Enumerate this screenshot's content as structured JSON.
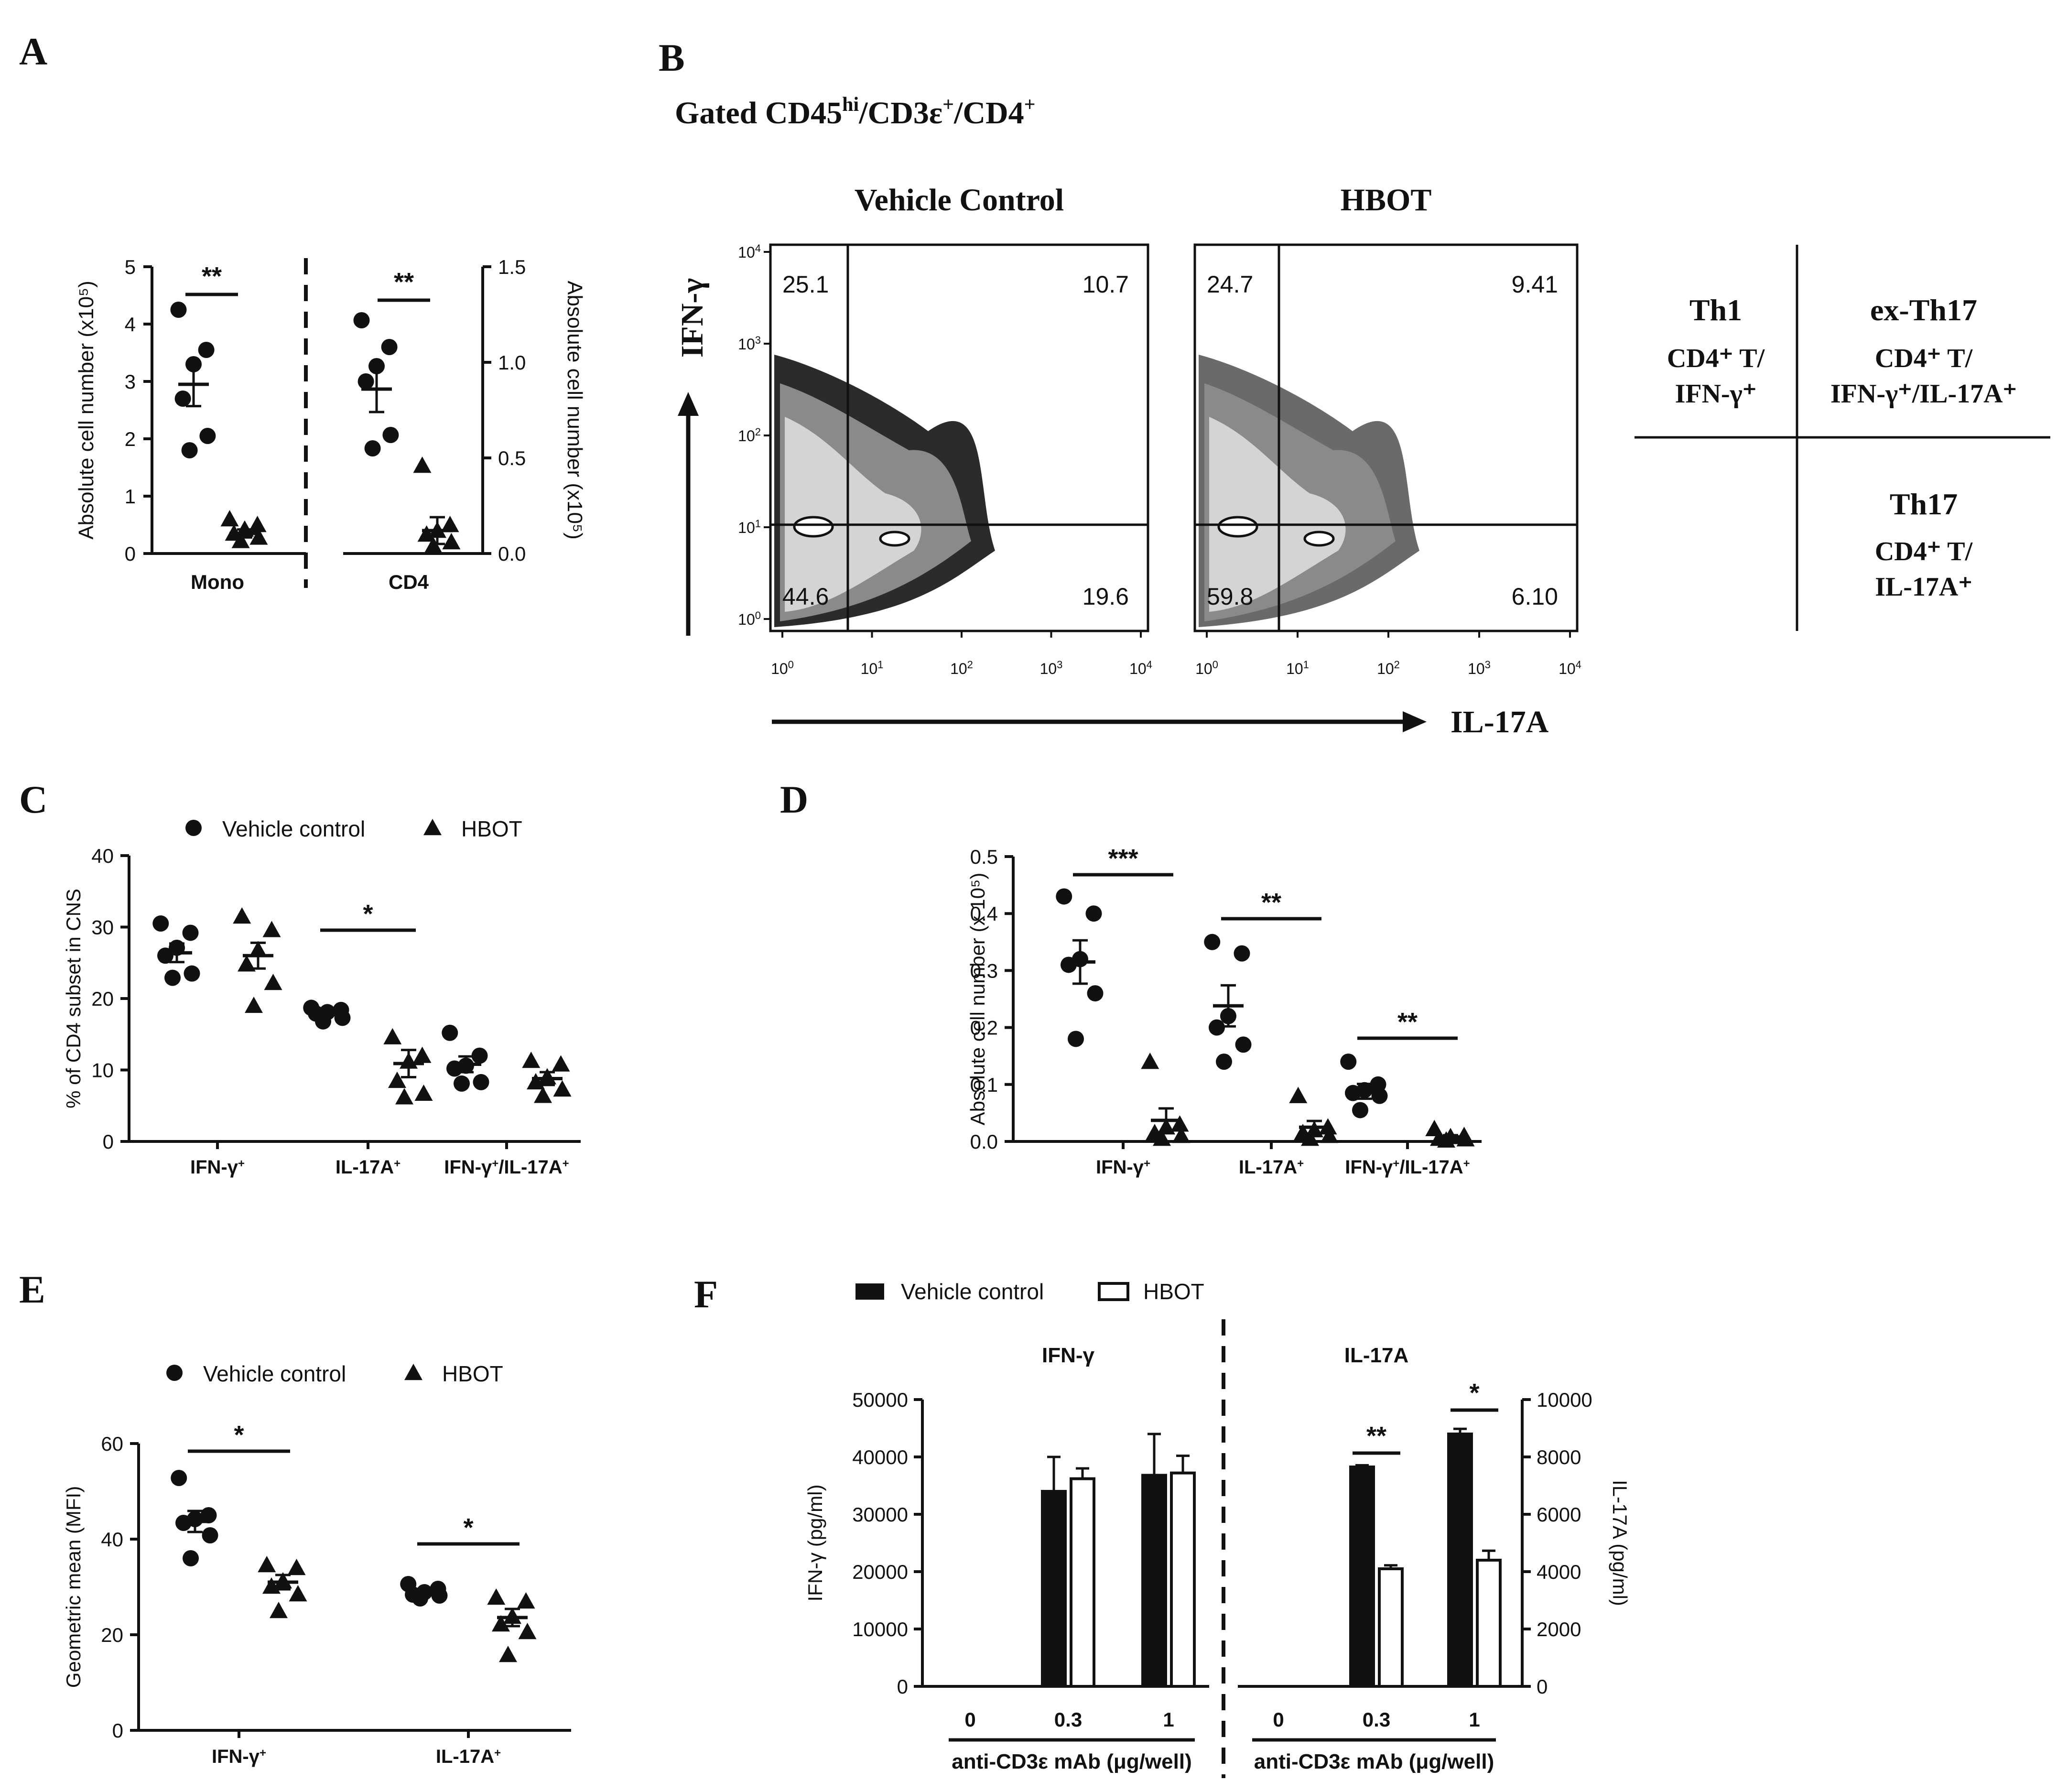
{
  "panels": {
    "A": {
      "label": "A"
    },
    "B": {
      "label": "B",
      "gating_title": "Gated CD45",
      "gating_sup": "hi",
      "gating_rest": "/CD3ε",
      "gating_sup2": "+",
      "gating_rest2": "/CD4",
      "gating_sup3": "+"
    },
    "C": {
      "label": "C"
    },
    "D": {
      "label": "D"
    },
    "E": {
      "label": "E"
    },
    "F": {
      "label": "F"
    }
  },
  "flow": {
    "plots": [
      {
        "title": "Vehicle Control",
        "q_ul": "25.1",
        "q_ur": "10.7",
        "q_ll": "44.6",
        "q_lr": "19.6"
      },
      {
        "title": "HBOT",
        "q_ul": "24.7",
        "q_ur": "9.41",
        "q_ll": "59.8",
        "q_lr": "6.10"
      }
    ],
    "y_axis": "IFN-γ",
    "x_axis": "IL-17A",
    "log_base": "10",
    "log_exps": [
      "0",
      "1",
      "2",
      "3",
      "4"
    ],
    "legend_table": {
      "th1_title": "Th1",
      "th1_l1": "CD4⁺ T/",
      "th1_l2": "IFN-γ⁺",
      "exth17_title": "ex-Th17",
      "exth17_l1": "CD4⁺ T/",
      "exth17_l2": "IFN-γ⁺/IL-17A⁺",
      "th17_title": "Th17",
      "th17_l1": "CD4⁺ T/",
      "th17_l2": "IL-17A⁺"
    }
  },
  "legends": {
    "vehicle": "Vehicle control",
    "hbot": "HBOT"
  },
  "chart_data": [
    {
      "panel": "A",
      "type": "scatter",
      "categories": [
        "Mono",
        "CD4"
      ],
      "left_axis": {
        "label": "Absolute cell number (x10⁵)",
        "range": [
          0,
          5
        ],
        "ticks": [
          "0",
          "1",
          "2",
          "3",
          "4",
          "5"
        ]
      },
      "right_axis": {
        "label": "Absolute cell number (x10⁵)",
        "range": [
          0,
          1.5
        ],
        "ticks": [
          "0.0",
          "0.5",
          "1.0",
          "1.5"
        ]
      },
      "series": [
        {
          "name": "Mono vehicle",
          "axis": "left",
          "marker": "circle",
          "values": [
            4.25,
            3.55,
            3.3,
            2.7,
            2.05,
            1.8
          ],
          "mean": 2.95,
          "sem": 0.38
        },
        {
          "name": "Mono HBOT",
          "axis": "left",
          "marker": "triangle",
          "values": [
            0.6,
            0.5,
            0.42,
            0.35,
            0.28,
            0.22
          ],
          "mean": 0.35,
          "sem": 0.07
        },
        {
          "name": "CD4 vehicle",
          "axis": "right",
          "marker": "circle",
          "values": [
            1.22,
            1.08,
            0.98,
            0.9,
            0.62,
            0.55
          ],
          "mean": 0.86,
          "sem": 0.12
        },
        {
          "name": "CD4 HBOT",
          "axis": "right",
          "marker": "triangle",
          "values": [
            0.46,
            0.15,
            0.12,
            0.1,
            0.06,
            0.04
          ],
          "mean": 0.12,
          "sem": 0.07
        }
      ],
      "significance": [
        "**",
        "**"
      ]
    },
    {
      "panel": "C",
      "type": "scatter",
      "ylabel": "% of CD4 subset in CNS",
      "ylim": [
        0,
        40
      ],
      "yticks": [
        "0",
        "10",
        "20",
        "30",
        "40"
      ],
      "categories": [
        "IFN-γ⁺",
        "IL-17A⁺",
        "IFN-γ⁺/IL-17A⁺"
      ],
      "series": [
        {
          "name": "Vehicle control",
          "marker": "circle",
          "groups": [
            [
              30.5,
              29.2,
              27.1,
              26.0,
              23.5,
              22.9
            ],
            [
              18.7,
              18.4,
              18.1,
              17.9,
              17.3,
              16.8
            ],
            [
              15.2,
              12.0,
              10.6,
              10.2,
              8.3,
              8.1
            ]
          ],
          "means": [
            26.4,
            18.0,
            10.8
          ],
          "sems": [
            1.3,
            0.3,
            1.1
          ]
        },
        {
          "name": "HBOT",
          "marker": "triangle",
          "groups": [
            [
              31.5,
              29.6,
              26.8,
              24.8,
              22.2,
              19.0
            ],
            [
              14.6,
              12.0,
              11.2,
              8.5,
              6.7,
              6.2
            ],
            [
              11.3,
              10.8,
              9.0,
              8.3,
              7.3,
              6.4
            ]
          ],
          "means": [
            26.0,
            10.9,
            8.8
          ],
          "sems": [
            1.8,
            1.9,
            0.9
          ]
        }
      ],
      "significance": [
        "",
        "*",
        ""
      ]
    },
    {
      "panel": "D",
      "type": "scatter",
      "ylabel": "Absolute cell number (x 10⁵)",
      "ylim": [
        0,
        0.5
      ],
      "yticks": [
        "0.0",
        "0.1",
        "0.2",
        "0.3",
        "0.4",
        "0.5"
      ],
      "categories": [
        "IFN-γ⁺",
        "IL-17A⁺",
        "IFN-γ⁺/IL-17A⁺"
      ],
      "series": [
        {
          "name": "Vehicle control",
          "marker": "circle",
          "groups": [
            [
              0.43,
              0.4,
              0.32,
              0.31,
              0.26,
              0.18
            ],
            [
              0.35,
              0.33,
              0.22,
              0.2,
              0.17,
              0.14
            ],
            [
              0.14,
              0.1,
              0.09,
              0.085,
              0.08,
              0.055
            ]
          ],
          "means": [
            0.315,
            0.238,
            0.088
          ],
          "sems": [
            0.038,
            0.036,
            0.013
          ]
        },
        {
          "name": "HBOT",
          "marker": "triangle",
          "groups": [
            [
              0.14,
              0.03,
              0.025,
              0.015,
              0.01,
              0.005
            ],
            [
              0.08,
              0.025,
              0.02,
              0.015,
              0.01,
              0.005
            ],
            [
              0.022,
              0.01,
              0.008,
              0.005,
              0.004,
              0.002
            ]
          ],
          "means": [
            0.037,
            0.025,
            0.008
          ],
          "sems": [
            0.021,
            0.011,
            0.003
          ]
        }
      ],
      "significance": [
        "***",
        "**",
        "**"
      ]
    },
    {
      "panel": "E",
      "type": "scatter",
      "ylabel": "Geometric mean (MFI)",
      "ylim": [
        0,
        60
      ],
      "yticks": [
        "0",
        "20",
        "40",
        "60"
      ],
      "categories": [
        "IFN-γ⁺",
        "IL-17A⁺"
      ],
      "series": [
        {
          "name": "Vehicle control",
          "marker": "circle",
          "groups": [
            [
              52.8,
              45.0,
              44.2,
              43.4,
              40.8,
              36.0
            ],
            [
              30.6,
              29.6,
              28.9,
              28.4,
              28.2,
              27.6
            ]
          ],
          "means": [
            43.7,
            28.9
          ],
          "sems": [
            2.2,
            0.5
          ]
        },
        {
          "name": "HBOT",
          "marker": "triangle",
          "groups": [
            [
              34.6,
              34.0,
              31.2,
              30.1,
              28.5,
              25.0
            ],
            [
              27.8,
              27.0,
              23.8,
              22.2,
              20.6,
              15.8
            ]
          ],
          "means": [
            31.0,
            23.6
          ],
          "sems": [
            1.5,
            1.8
          ]
        }
      ],
      "significance": [
        "*",
        "*"
      ]
    },
    {
      "panel": "F",
      "type": "bar",
      "legend": [
        "Vehicle control",
        "HBOT"
      ],
      "groups": [
        {
          "title": "IFN-γ",
          "axis": "left",
          "categories": [
            "0",
            "0.3",
            "1"
          ],
          "vehicle": [
            0,
            34000,
            36800
          ],
          "vehicle_err": [
            0,
            6000,
            7200
          ],
          "hbot": [
            0,
            36200,
            37200
          ],
          "hbot_err": [
            0,
            1800,
            3000
          ],
          "significance": [
            "",
            "",
            ""
          ]
        },
        {
          "title": "IL-17A",
          "axis": "right",
          "categories": [
            "0",
            "0.3",
            "1"
          ],
          "vehicle": [
            0,
            7650,
            8800
          ],
          "vehicle_err": [
            0,
            60,
            180
          ],
          "hbot": [
            0,
            4100,
            4400
          ],
          "hbot_err": [
            0,
            120,
            330
          ],
          "significance": [
            "",
            "**",
            "*"
          ]
        }
      ],
      "left_axis": {
        "label": "IFN-γ (pg/ml)",
        "range": [
          0,
          50000
        ],
        "ticks": [
          "0",
          "10000",
          "20000",
          "30000",
          "40000",
          "50000"
        ]
      },
      "right_axis": {
        "label": "IL-17A (pg/ml)",
        "range": [
          0,
          10000
        ],
        "ticks": [
          "0",
          "2000",
          "4000",
          "6000",
          "8000",
          "10000"
        ]
      },
      "xlabel": "anti-CD3ε mAb (μg/well)"
    }
  ]
}
